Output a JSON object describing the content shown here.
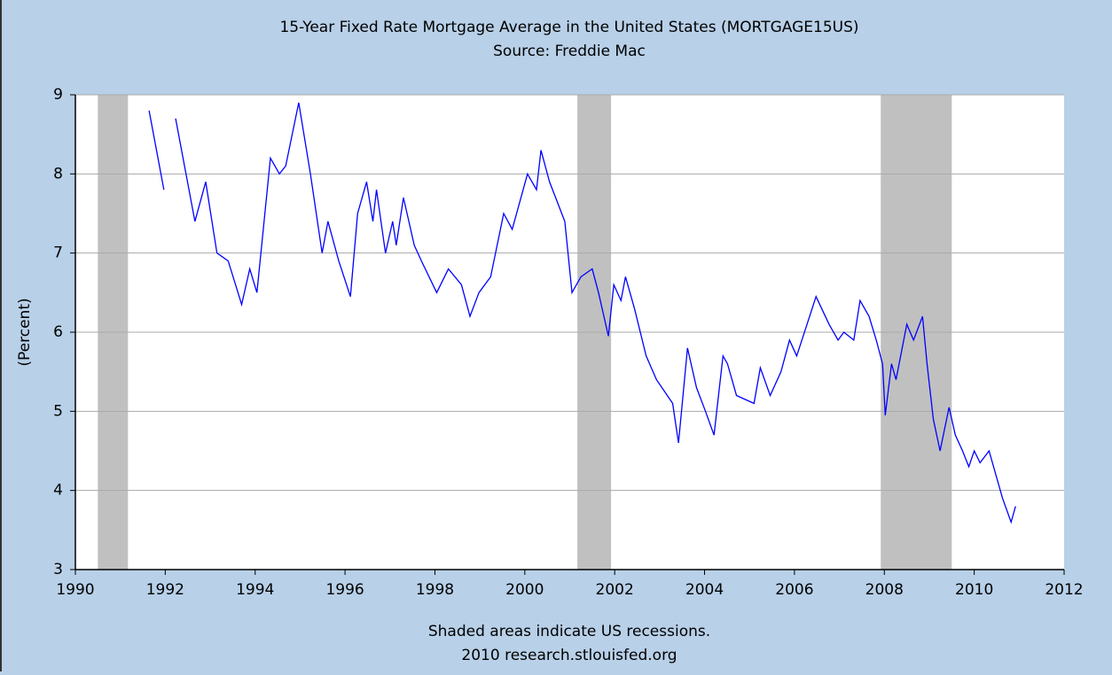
{
  "chart_data": {
    "type": "line",
    "title": "15-Year Fixed Rate Mortgage Average in the United States (MORTGAGE15US)",
    "subtitle": "Source: Freddie Mac",
    "y_label": "(Percent)",
    "notes": [
      "Shaded areas indicate US recessions.",
      "2010 research.stlouisfed.org"
    ],
    "xlim": [
      1990,
      2012
    ],
    "xticks": [
      1990,
      1992,
      1994,
      1996,
      1998,
      2000,
      2002,
      2004,
      2006,
      2008,
      2010,
      2012
    ],
    "ylim": [
      3,
      9
    ],
    "yticks": [
      3,
      4,
      5,
      6,
      7,
      8,
      9
    ],
    "grid": true,
    "recession_color": "#c0c0c0",
    "recessions": [
      [
        1990.5,
        1991.17
      ],
      [
        2001.17,
        2001.92
      ],
      [
        2007.92,
        2009.5
      ]
    ],
    "x": [
      1991.64,
      1991.97,
      2000,
      1992.23,
      1992.66,
      1992.9,
      1993.15,
      1993.4,
      1993.7,
      1993.88,
      1994.04,
      1994.34,
      1994.54,
      1994.68,
      1994.97,
      1995.23,
      1995.49,
      1995.62,
      1995.86,
      1996.12,
      1996.28,
      1996.48,
      1996.62,
      1996.7,
      1996.9,
      1997.06,
      1997.14,
      1997.3,
      1997.54,
      1997.7,
      1998.04,
      1998.3,
      1998.59,
      1998.78,
      1998.98,
      1999.24,
      1999.53,
      1999.72,
      2000.06,
      2000.26,
      2000.36,
      2000.55,
      2000.89,
      2001.05,
      2001.25,
      2001.5,
      2001.64,
      2001.86,
      2001.98,
      2002.14,
      2002.24,
      2002.44,
      2002.7,
      2002.93,
      2003.29,
      2003.42,
      2003.62,
      2003.82,
      2004.02,
      2004.21,
      2004.41,
      2004.51,
      2004.71,
      2005.1,
      2005.24,
      2005.46,
      2005.7,
      2005.89,
      2006.05,
      2006.28,
      2006.48,
      2006.77,
      2006.97,
      2007.1,
      2007.32,
      2007.46,
      2007.66,
      2007.82,
      2007.96,
      2008.02,
      2008.16,
      2008.26,
      2008.5,
      2008.65,
      2008.85,
      2008.95,
      2009.09,
      2009.24,
      2009.44,
      2009.58,
      2009.74,
      2009.88,
      2010.0,
      2010.13,
      2010.33,
      2010.53,
      2010.63,
      2010.82,
      2010.92
    ],
    "series": [
      {
        "name": "MORTGAGE15US",
        "color": "#0000ff",
        "values": [
          8.8,
          7.8,
          null,
          8.7,
          7.4,
          7.9,
          7.0,
          6.9,
          6.35,
          6.8,
          6.5,
          8.2,
          8.0,
          8.1,
          8.9,
          8.0,
          7.0,
          7.4,
          6.9,
          6.45,
          7.5,
          7.9,
          7.4,
          7.8,
          7.0,
          7.4,
          7.1,
          7.7,
          7.1,
          6.9,
          6.5,
          6.8,
          6.6,
          6.2,
          6.5,
          6.7,
          7.5,
          7.3,
          8.0,
          7.8,
          8.3,
          7.9,
          7.4,
          6.5,
          6.7,
          6.8,
          6.5,
          5.95,
          6.6,
          6.4,
          6.7,
          6.3,
          5.7,
          5.4,
          5.1,
          4.6,
          5.8,
          5.3,
          5.0,
          4.7,
          5.7,
          5.6,
          5.2,
          5.1,
          5.55,
          5.2,
          5.5,
          5.9,
          5.7,
          6.1,
          6.45,
          6.1,
          5.9,
          6.0,
          5.9,
          6.4,
          6.2,
          5.9,
          5.6,
          4.95,
          5.6,
          5.4,
          6.1,
          5.9,
          6.2,
          5.6,
          4.9,
          4.5,
          5.05,
          4.7,
          4.5,
          4.3,
          4.5,
          4.35,
          4.5,
          4.1,
          3.9,
          3.6,
          3.8
        ]
      }
    ]
  }
}
